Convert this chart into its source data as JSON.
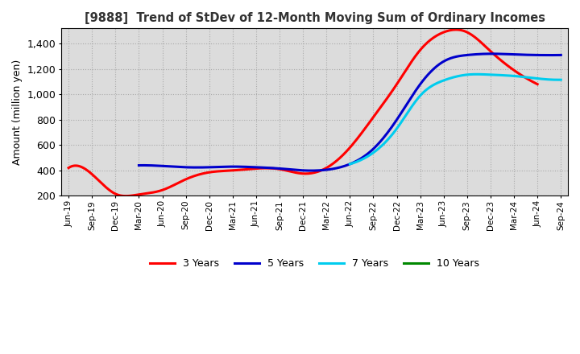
{
  "title": "[9888]  Trend of StDev of 12-Month Moving Sum of Ordinary Incomes",
  "ylabel": "Amount (million yen)",
  "background_color": "#ffffff",
  "plot_bg_color": "#e8e8e8",
  "grid_color": "#ffffff",
  "ylim": [
    200,
    1520
  ],
  "yticks": [
    200,
    400,
    600,
    800,
    1000,
    1200,
    1400
  ],
  "x_labels": [
    "Jun-19",
    "Sep-19",
    "Dec-19",
    "Mar-20",
    "Jun-20",
    "Sep-20",
    "Dec-20",
    "Mar-21",
    "Jun-21",
    "Sep-21",
    "Dec-21",
    "Mar-22",
    "Jun-22",
    "Sep-22",
    "Dec-22",
    "Mar-23",
    "Jun-23",
    "Sep-23",
    "Dec-23",
    "Mar-24",
    "Jun-24",
    "Sep-24"
  ],
  "series": {
    "3 Years": {
      "color": "#ff0000",
      "data": [
        420,
        370,
        215,
        210,
        245,
        330,
        385,
        400,
        415,
        410,
        375,
        420,
        580,
        820,
        1080,
        1350,
        1490,
        1490,
        1340,
        1190,
        1080,
        null
      ]
    },
    "5 Years": {
      "color": "#0000cc",
      "data": [
        null,
        null,
        null,
        440,
        435,
        425,
        425,
        430,
        425,
        415,
        400,
        405,
        450,
        570,
        800,
        1080,
        1260,
        1310,
        1320,
        1315,
        1310,
        1310
      ]
    },
    "7 Years": {
      "color": "#00ccee",
      "data": [
        null,
        null,
        null,
        null,
        null,
        null,
        null,
        null,
        null,
        null,
        null,
        null,
        450,
        540,
        730,
        990,
        1110,
        1155,
        1155,
        1145,
        1125,
        1115
      ]
    },
    "10 Years": {
      "color": "#008800",
      "data": [
        null,
        null,
        null,
        null,
        null,
        null,
        null,
        null,
        null,
        null,
        null,
        null,
        null,
        null,
        null,
        null,
        null,
        null,
        null,
        null,
        null,
        null
      ]
    }
  },
  "legend_labels": [
    "3 Years",
    "5 Years",
    "7 Years",
    "10 Years"
  ],
  "legend_colors": [
    "#ff0000",
    "#0000cc",
    "#00ccee",
    "#008800"
  ]
}
